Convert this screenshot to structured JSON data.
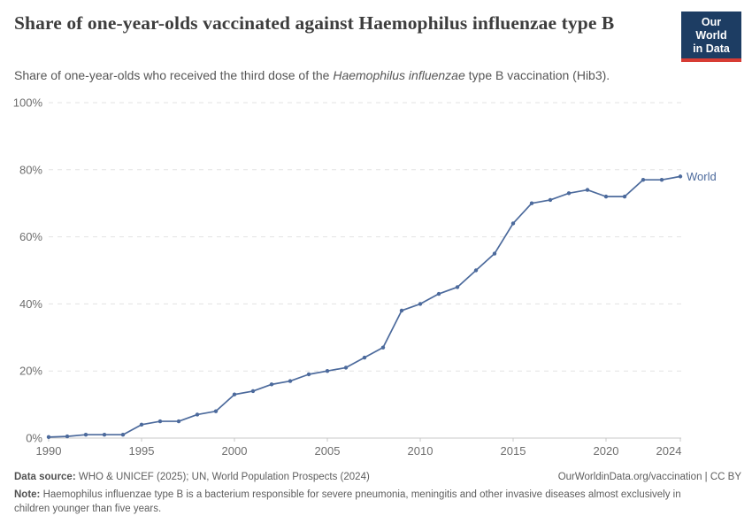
{
  "header": {
    "title": "Share of one-year-olds vaccinated against Haemophilus influenzae type B",
    "subtitle_pre": "Share of one-year-olds who received the third dose of the ",
    "subtitle_italic": "Haemophilus influenzae",
    "subtitle_post": " type B vaccination (Hib3).",
    "logo_line1": "Our World",
    "logo_line2": "in Data"
  },
  "footer": {
    "datasource_label": "Data source:",
    "datasource_text": " WHO & UNICEF (2025); UN, World Population Prospects (2024)",
    "rights": "OurWorldinData.org/vaccination | CC BY",
    "note_label": "Note:",
    "note_text": " Haemophilus influenzae type B is a bacterium responsible for severe pneumonia, meningitis and other invasive diseases almost exclusively in children younger than five years."
  },
  "colors": {
    "line": "#4C6A9C",
    "logo_bg": "#1D3D63",
    "logo_red": "#D73C34",
    "grid": "#e3e3e3",
    "axis": "#c8c8c8",
    "tick_label": "#6e6e6e"
  },
  "chart_data": {
    "type": "line",
    "title": "Share of one-year-olds vaccinated against Haemophilus influenzae type B",
    "xlabel": "",
    "ylabel": "",
    "ylim": [
      0,
      100
    ],
    "y_ticks": [
      0,
      20,
      40,
      60,
      80,
      100
    ],
    "y_tick_suffix": "%",
    "x_ticks": [
      1990,
      1995,
      2000,
      2005,
      2010,
      2015,
      2020,
      2024
    ],
    "grid": "horizontal-dashed",
    "legend_position": "end-of-line",
    "end_label": "World",
    "series": [
      {
        "name": "World",
        "x": [
          1990,
          1991,
          1992,
          1993,
          1994,
          1995,
          1996,
          1997,
          1998,
          1999,
          2000,
          2001,
          2002,
          2003,
          2004,
          2005,
          2006,
          2007,
          2008,
          2009,
          2010,
          2011,
          2012,
          2013,
          2014,
          2015,
          2016,
          2017,
          2018,
          2019,
          2020,
          2021,
          2022,
          2023,
          2024
        ],
        "values": [
          0.3,
          0.5,
          1,
          1,
          1,
          4,
          5,
          5,
          7,
          8,
          13,
          14,
          16,
          17,
          19,
          20,
          21,
          24,
          27,
          38,
          40,
          43,
          45,
          50,
          55,
          64,
          70,
          71,
          73,
          74,
          72,
          72,
          77,
          77,
          78
        ]
      }
    ]
  }
}
